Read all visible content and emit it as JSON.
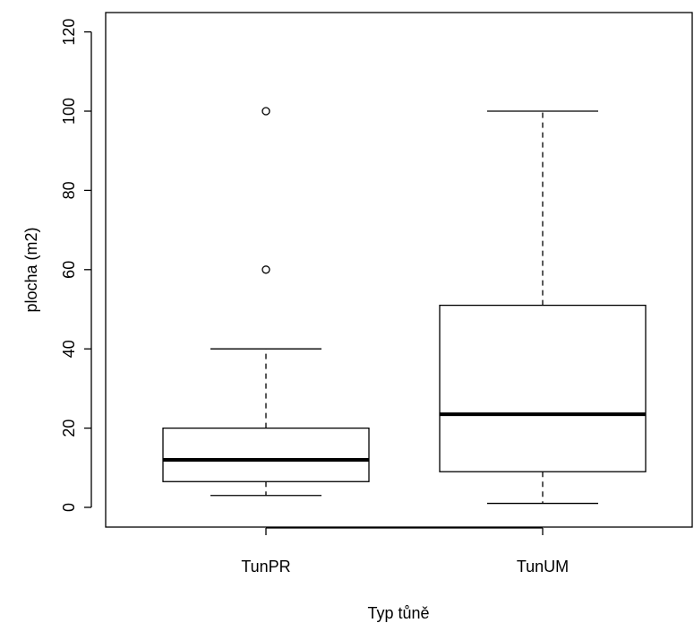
{
  "chart_data": {
    "type": "boxplot",
    "title": "",
    "xlabel": "Typ tůně",
    "ylabel": "plocha (m2)",
    "ylim": [
      -5,
      125
    ],
    "yticks": [
      0,
      20,
      40,
      60,
      80,
      100,
      120
    ],
    "grid": false,
    "categories": [
      "TunPR",
      "TunUM"
    ],
    "boxes": [
      {
        "category": "TunPR",
        "whisker_low": 3,
        "q1": 6.5,
        "median": 12,
        "q3": 20,
        "whisker_high": 40,
        "outliers": [
          60,
          100
        ]
      },
      {
        "category": "TunUM",
        "whisker_low": 1,
        "q1": 9,
        "median": 23.5,
        "q3": 51,
        "whisker_high": 100,
        "outliers": []
      }
    ]
  }
}
